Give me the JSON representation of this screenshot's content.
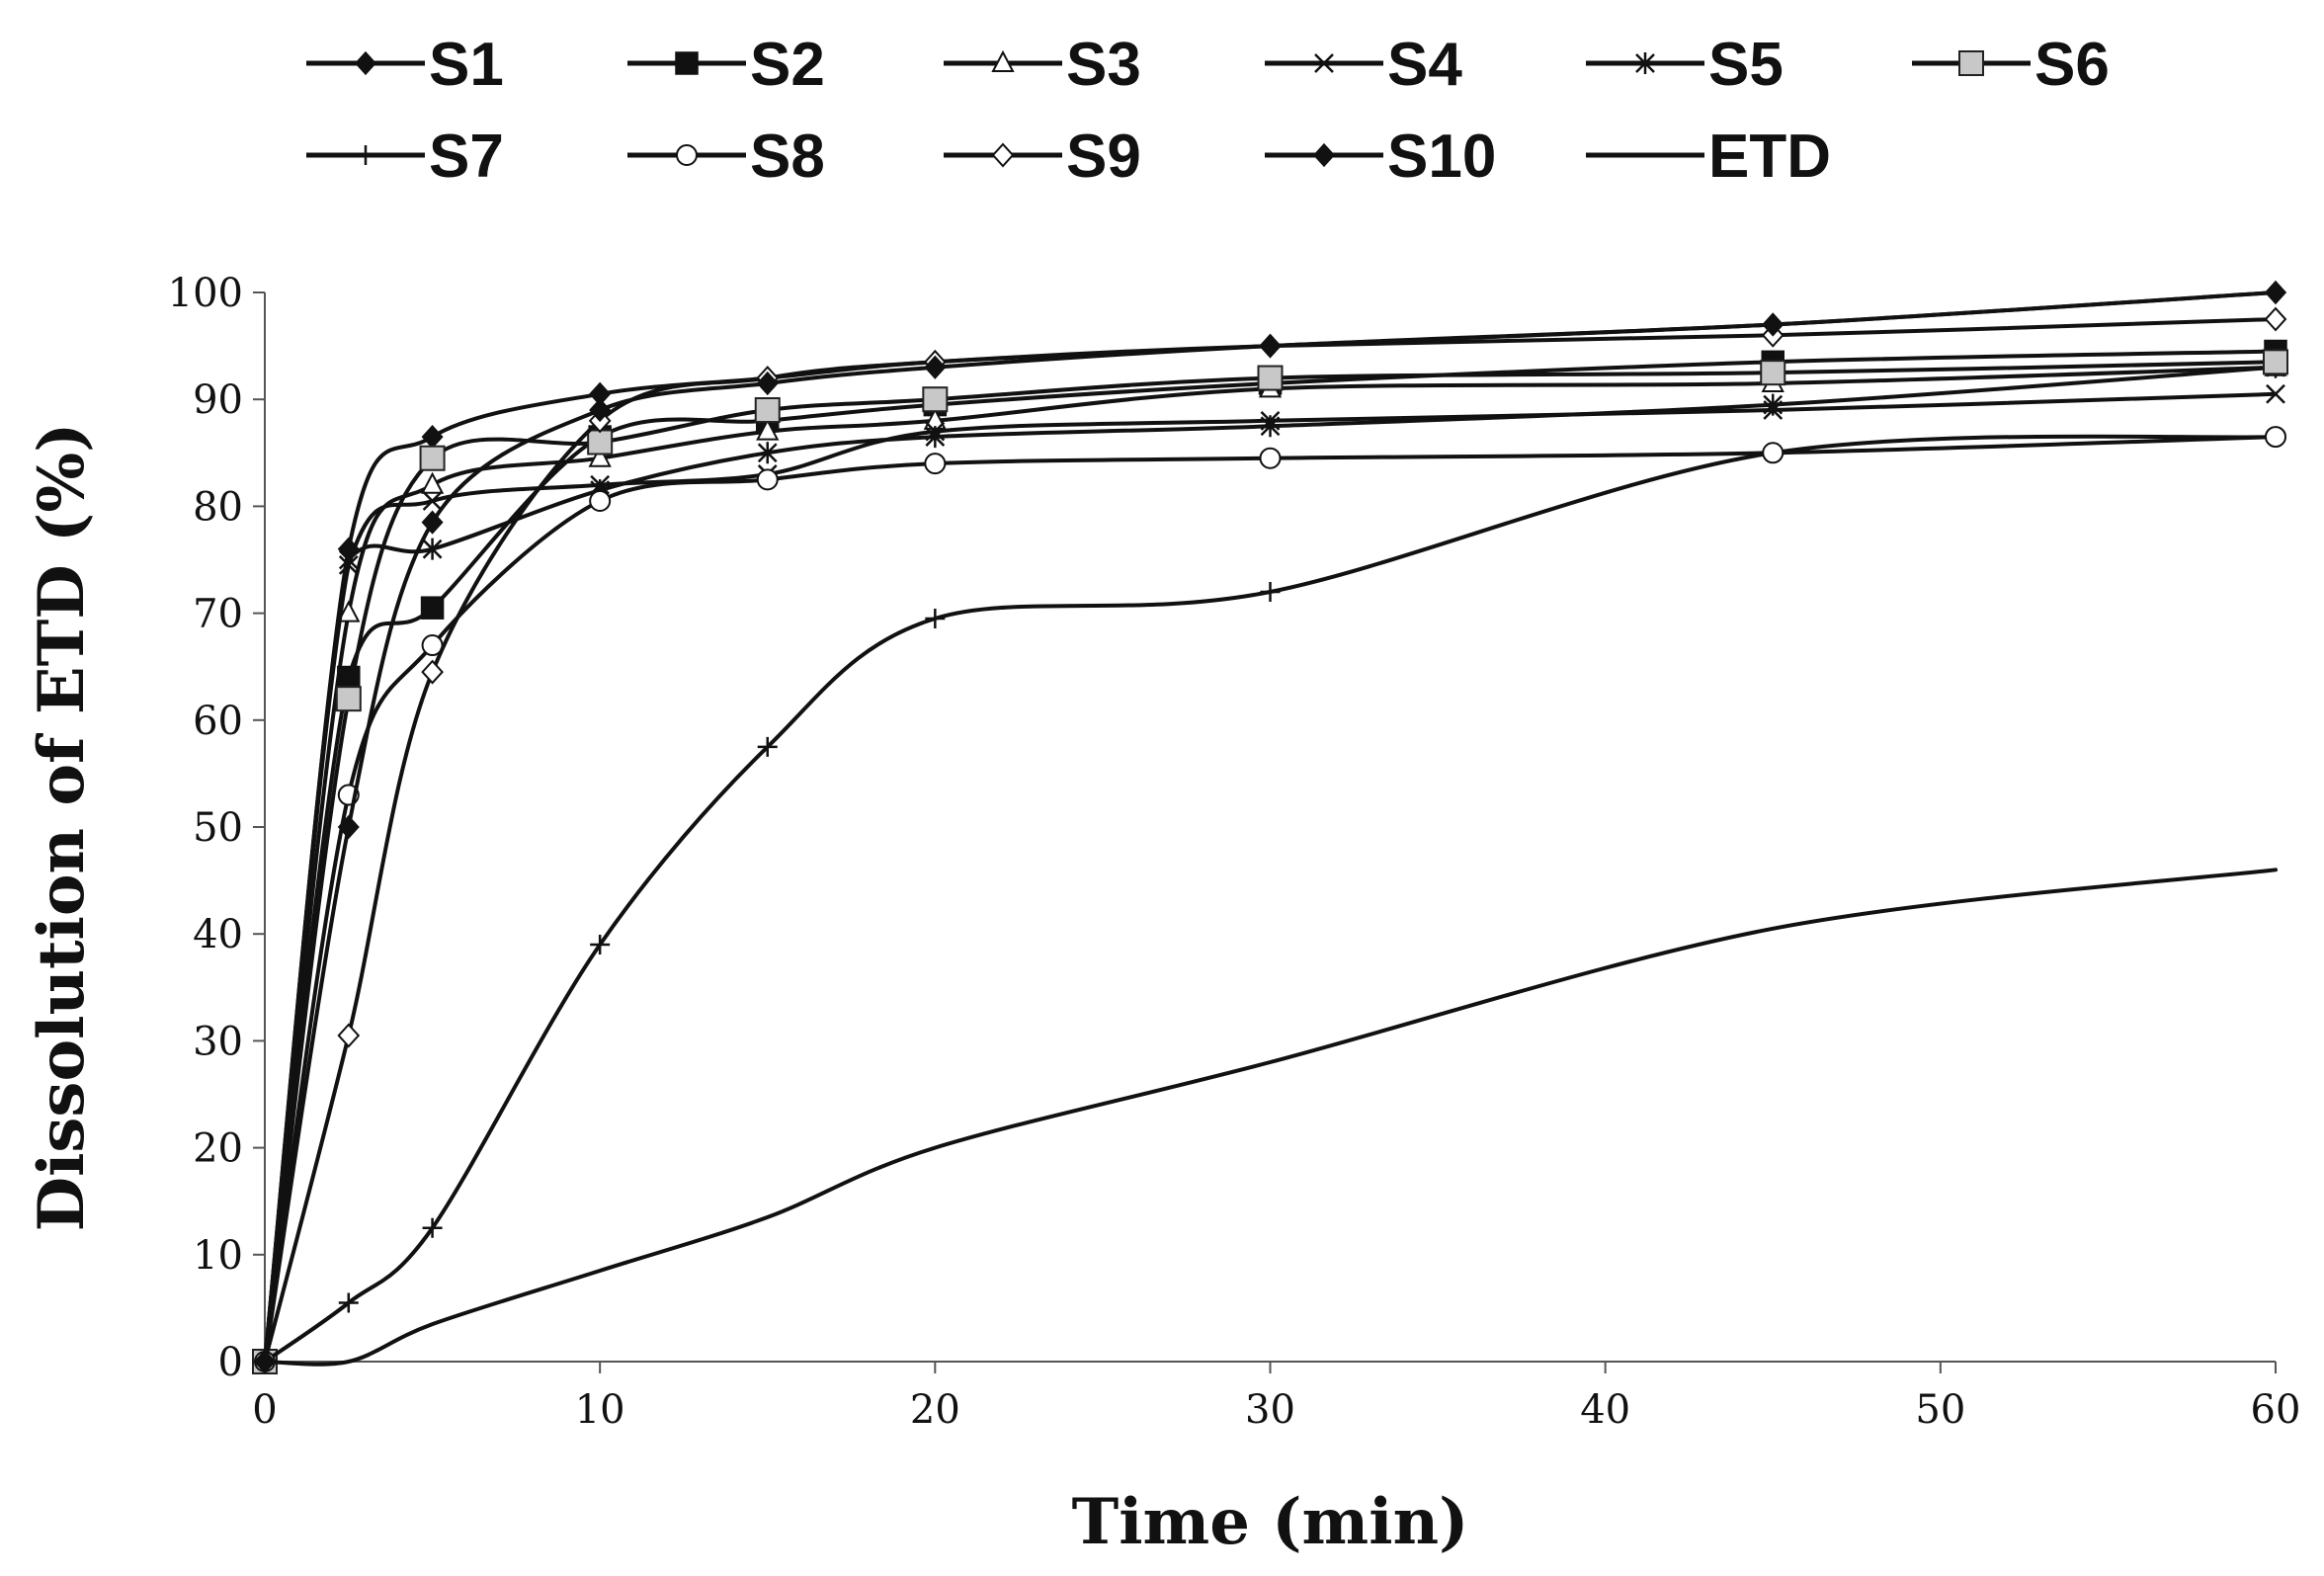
{
  "chart_data": {
    "type": "line",
    "title": "",
    "xlabel": "Time (min)",
    "ylabel": "Dissolution of ETD (%)",
    "xlim": [
      0,
      60
    ],
    "ylim": [
      0,
      100
    ],
    "xticks": [
      0,
      10,
      20,
      30,
      40,
      50,
      60
    ],
    "yticks": [
      0,
      10,
      20,
      30,
      40,
      50,
      60,
      70,
      80,
      90,
      100
    ],
    "grid": false,
    "legend_position": "top",
    "x": [
      0,
      2.5,
      5,
      10,
      15,
      20,
      30,
      45,
      60
    ],
    "series": [
      {
        "name": "S1",
        "marker": "diamond-filled",
        "values": [
          0,
          76,
          86.5,
          90.5,
          92,
          93.5,
          95,
          97,
          100
        ]
      },
      {
        "name": "S2",
        "marker": "square-filled",
        "values": [
          0,
          64,
          70.5,
          86.5,
          88,
          89.5,
          91.5,
          93.5,
          94.5
        ]
      },
      {
        "name": "S3",
        "marker": "triangle-open",
        "values": [
          0,
          70,
          82,
          84.5,
          87,
          88,
          91,
          91.5,
          93
        ]
      },
      {
        "name": "S4",
        "marker": "x",
        "values": [
          0,
          74.5,
          80.5,
          82,
          83,
          87,
          88,
          89,
          90.5
        ]
      },
      {
        "name": "S5",
        "marker": "star",
        "values": [
          0,
          75,
          76,
          81.5,
          85,
          86.5,
          87.5,
          89.5,
          93
        ]
      },
      {
        "name": "S6",
        "marker": "square-gray",
        "values": [
          0,
          62,
          84.5,
          86,
          89,
          90,
          92,
          92.5,
          93.5
        ]
      },
      {
        "name": "S7",
        "marker": "plus",
        "values": [
          0,
          5.5,
          12.5,
          39,
          57.5,
          69.5,
          72,
          85,
          86.5
        ]
      },
      {
        "name": "S8",
        "marker": "circle-open",
        "values": [
          0,
          53,
          67,
          80.5,
          82.5,
          84,
          84.5,
          85,
          86.5
        ]
      },
      {
        "name": "S9",
        "marker": "diamond-open",
        "values": [
          0,
          30.5,
          64.5,
          88,
          92,
          93.5,
          95,
          96,
          97.5
        ]
      },
      {
        "name": "S10",
        "marker": "diamond-filled",
        "values": [
          0,
          50,
          78.5,
          89,
          91.5,
          93,
          95,
          97,
          100
        ]
      },
      {
        "name": "ETD",
        "marker": "none",
        "values": [
          0,
          0,
          3.5,
          8.5,
          13.5,
          20,
          28,
          40.5,
          46
        ]
      }
    ]
  }
}
